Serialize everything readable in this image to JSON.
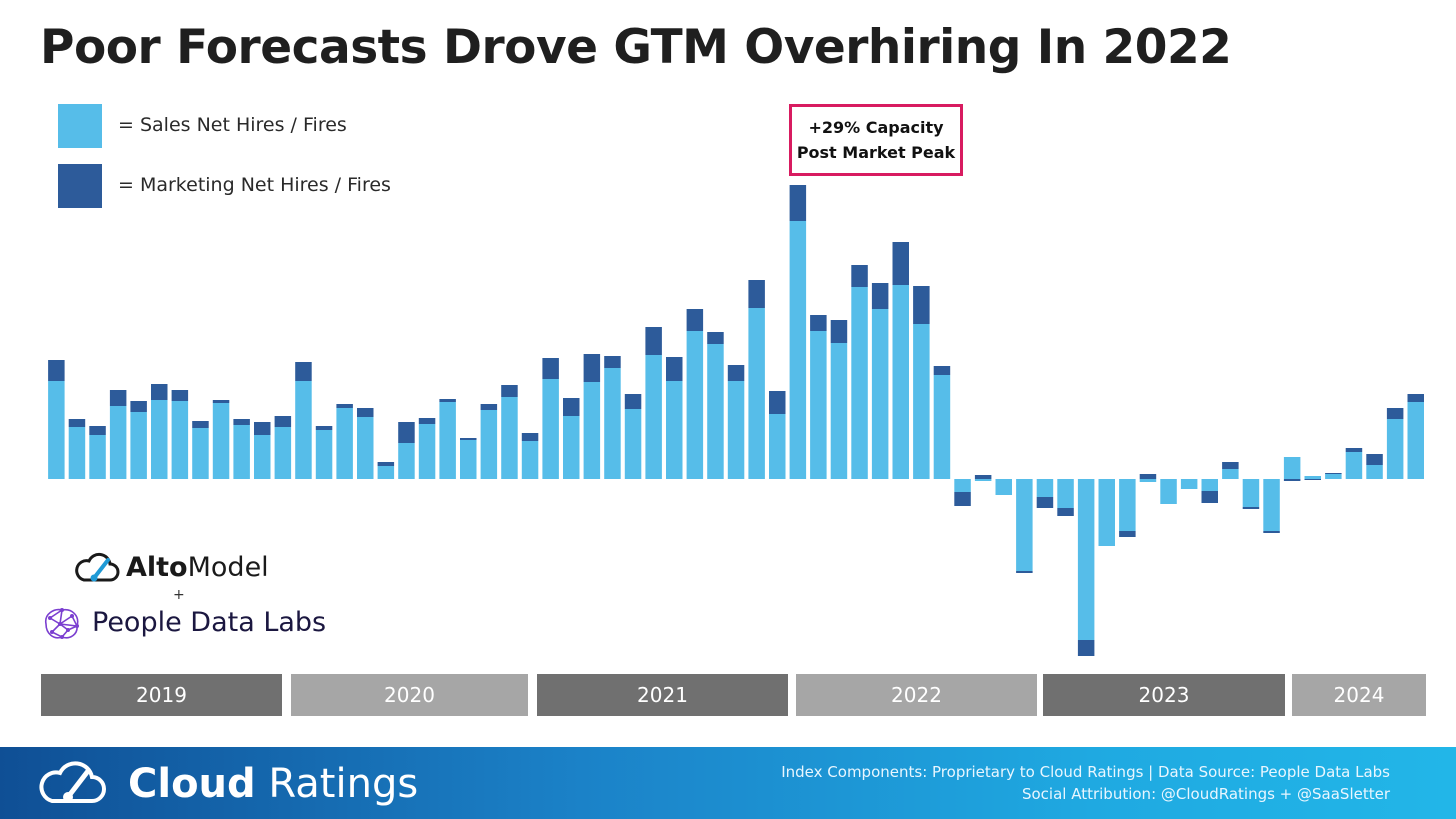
{
  "title": "Poor Forecasts Drove GTM Overhiring In 2022",
  "legend": [
    {
      "label": "= Sales Net Hires / Fires",
      "color": "#56bde9"
    },
    {
      "label": "= Marketing Net Hires / Fires",
      "color": "#2d5b9a"
    }
  ],
  "annotation": {
    "line1": "+29% Capacity",
    "line2": "Post Market Peak",
    "border_color": "#d81b60"
  },
  "years": [
    {
      "label": "2019",
      "color": "#707070"
    },
    {
      "label": "2020",
      "color": "#a6a6a6"
    },
    {
      "label": "2021",
      "color": "#707070"
    },
    {
      "label": "2022",
      "color": "#a6a6a6"
    },
    {
      "label": "2023",
      "color": "#707070"
    },
    {
      "label": "2024",
      "color": "#a6a6a6"
    }
  ],
  "logos": {
    "alto_bold": "Alto",
    "alto_light": "Model",
    "plus": "+",
    "pdl": "People Data Labs"
  },
  "footer": {
    "brand_bold": "Cloud",
    "brand_light": "Ratings",
    "line1": "Index Components: Proprietary to Cloud Ratings | Data Source: People Data Labs",
    "line2": "Social Attribution: @CloudRatings + @SaaSletter"
  },
  "chart_data": {
    "type": "bar",
    "stacked": true,
    "grid": false,
    "y_axis_labeled": false,
    "series": [
      {
        "name": "= Sales Net Hires / Fires",
        "color": "#56bde9",
        "values": [
          98,
          52,
          44,
          73,
          67,
          79,
          78,
          51,
          76,
          54,
          44,
          52,
          98,
          49,
          71,
          62,
          13,
          36,
          55,
          77,
          39,
          69,
          82,
          38,
          100,
          63,
          97,
          111,
          70,
          124,
          98,
          148,
          135,
          98,
          171,
          65,
          258,
          148,
          136,
          192,
          170,
          194,
          155,
          104,
          -13,
          -2,
          -16,
          -92,
          -18,
          -29,
          -161,
          -67,
          -52,
          -3,
          -25,
          -10,
          -12,
          10,
          -28,
          -52,
          22,
          3,
          5,
          27,
          14,
          60,
          77
        ]
      },
      {
        "name": "= Marketing Net Hires / Fires",
        "color": "#2d5b9a",
        "values": [
          21,
          8,
          9,
          16,
          11,
          16,
          11,
          7,
          3,
          6,
          13,
          11,
          19,
          4,
          4,
          9,
          4,
          21,
          6,
          3,
          2,
          6,
          12,
          8,
          21,
          18,
          28,
          12,
          15,
          28,
          24,
          22,
          12,
          16,
          28,
          23,
          36,
          16,
          23,
          22,
          26,
          43,
          38,
          9,
          -14,
          4,
          0,
          -2,
          -11,
          -8,
          -16,
          0,
          -6,
          5,
          0,
          0,
          -12,
          7,
          -2,
          -2,
          -2,
          -1,
          1,
          4,
          11,
          11,
          8
        ]
      }
    ]
  }
}
